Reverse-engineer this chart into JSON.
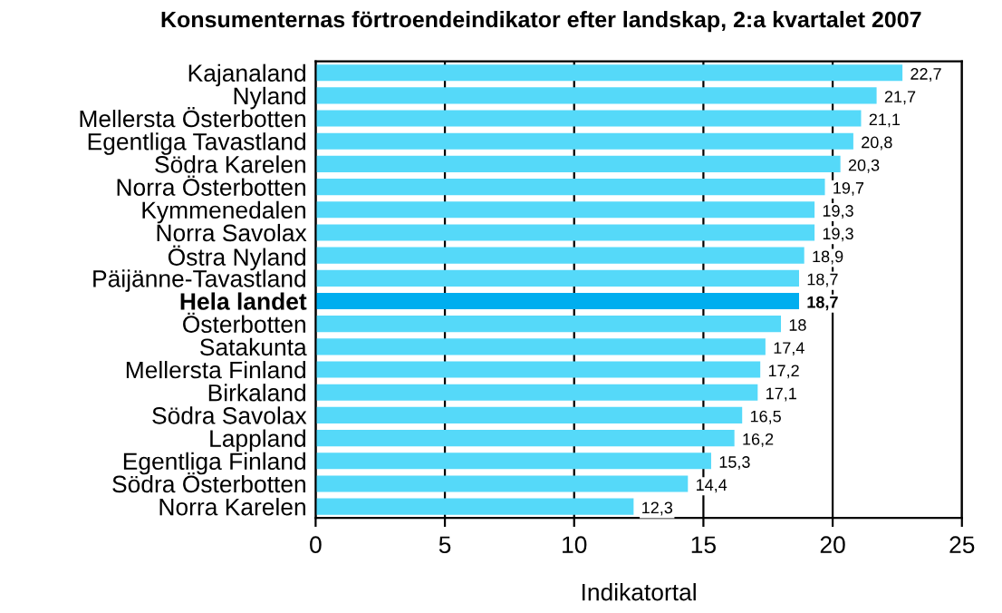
{
  "chart_data": {
    "type": "bar",
    "orientation": "horizontal",
    "title": "Konsumenternas förtroendeindikator efter landskap, 2:a kvartalet 2007",
    "xlabel": "Indikatortal",
    "categories": [
      "Kajanaland",
      "Nyland",
      "Mellersta Österbotten",
      "Egentliga Tavastland",
      "Södra Karelen",
      "Norra Österbotten",
      "Kymmenedalen",
      "Norra Savolax",
      "Östra Nyland",
      "Päijänne-Tavastland",
      "Hela landet",
      "Österbotten",
      "Satakunta",
      "Mellersta Finland",
      "Birkaland",
      "Södra Savolax",
      "Lappland",
      "Egentliga Finland",
      "Södra Österbotten",
      "Norra Karelen"
    ],
    "values": [
      22.7,
      21.7,
      21.1,
      20.8,
      20.3,
      19.7,
      19.3,
      19.3,
      18.9,
      18.7,
      18.7,
      18,
      17.4,
      17.2,
      17.1,
      16.5,
      16.2,
      15.3,
      14.4,
      12.3
    ],
    "value_labels": [
      "22,7",
      "21,7",
      "21,1",
      "20,8",
      "20,3",
      "19,7",
      "19,3",
      "19,3",
      "18,9",
      "18,7",
      "18,7",
      "18",
      "17,4",
      "17,2",
      "17,1",
      "16,5",
      "16,2",
      "15,3",
      "14,4",
      "12,3"
    ],
    "colors": [
      "#55d9f9",
      "#55d9f9",
      "#55d9f9",
      "#55d9f9",
      "#55d9f9",
      "#55d9f9",
      "#55d9f9",
      "#55d9f9",
      "#55d9f9",
      "#55d9f9",
      "#00aeef",
      "#55d9f9",
      "#55d9f9",
      "#55d9f9",
      "#55d9f9",
      "#55d9f9",
      "#55d9f9",
      "#55d9f9",
      "#55d9f9",
      "#55d9f9"
    ],
    "xlim": [
      0,
      25
    ],
    "xticks": [
      0,
      5,
      10,
      15,
      20,
      25
    ],
    "grid": "x"
  }
}
